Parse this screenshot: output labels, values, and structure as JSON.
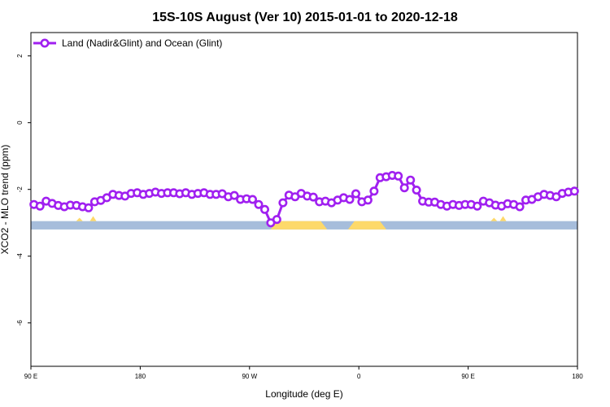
{
  "chart_data": {
    "type": "line",
    "title": "15S-10S August (Ver 10)   2015-01-01 to 2020-12-18",
    "xlabel": "Longitude (deg E)",
    "ylabel": "XCO2 - MLO trend (ppm)",
    "xlim": [
      90,
      450
    ],
    "ylim": [
      -7.3,
      2.7
    ],
    "x_ticks": [
      {
        "value": 90,
        "label": "90 E"
      },
      {
        "value": 162,
        "label": "180"
      },
      {
        "value": 234,
        "label": "90 W"
      },
      {
        "value": 306,
        "label": "0"
      },
      {
        "value": 378,
        "label": "90 E"
      },
      {
        "value": 450,
        "label": "180"
      }
    ],
    "y_ticks": [
      {
        "value": 2,
        "label": "2"
      },
      {
        "value": 0,
        "label": "0"
      },
      {
        "value": -2,
        "label": "-2"
      },
      {
        "value": -4,
        "label": "-4"
      },
      {
        "value": -6,
        "label": "-6"
      }
    ],
    "legend": {
      "position": "top-left"
    },
    "series": [
      {
        "name": "Land (Nadir&Glint) and Ocean (Glint)",
        "color": "#a020f0",
        "x": [
          92,
          96,
          100,
          104,
          108,
          112,
          116,
          120,
          124,
          128,
          132,
          136,
          140,
          144,
          148,
          152,
          156,
          160,
          164,
          168,
          172,
          176,
          180,
          184,
          188,
          192,
          196,
          200,
          204,
          208,
          212,
          216,
          220,
          224,
          228,
          232,
          236,
          240,
          244,
          248,
          252,
          256,
          260,
          264,
          268,
          272,
          276,
          280,
          284,
          288,
          292,
          296,
          300,
          304,
          308,
          312,
          316,
          320,
          324,
          328,
          332,
          336,
          340,
          344,
          348,
          352,
          356,
          360,
          364,
          368,
          372,
          376,
          380,
          384,
          388,
          392,
          396,
          400,
          404,
          408,
          412,
          416,
          420,
          424,
          428,
          432,
          436,
          440,
          444,
          448
        ],
        "y": [
          -2.45,
          -2.5,
          -2.35,
          -2.42,
          -2.48,
          -2.52,
          -2.47,
          -2.48,
          -2.52,
          -2.55,
          -2.37,
          -2.33,
          -2.25,
          -2.15,
          -2.18,
          -2.2,
          -2.12,
          -2.1,
          -2.15,
          -2.12,
          -2.08,
          -2.12,
          -2.1,
          -2.1,
          -2.13,
          -2.1,
          -2.15,
          -2.12,
          -2.1,
          -2.15,
          -2.15,
          -2.13,
          -2.22,
          -2.18,
          -2.3,
          -2.28,
          -2.3,
          -2.45,
          -2.6,
          -3.0,
          -2.9,
          -2.4,
          -2.17,
          -2.22,
          -2.12,
          -2.2,
          -2.23,
          -2.37,
          -2.35,
          -2.4,
          -2.32,
          -2.25,
          -2.3,
          -2.13,
          -2.37,
          -2.32,
          -2.05,
          -1.65,
          -1.62,
          -1.58,
          -1.6,
          -1.95,
          -1.72,
          -2.02,
          -2.35,
          -2.38,
          -2.38,
          -2.45,
          -2.5,
          -2.45,
          -2.48,
          -2.45,
          -2.45,
          -2.5,
          -2.35,
          -2.4,
          -2.47,
          -2.5,
          -2.43,
          -2.45,
          -2.52,
          -2.32,
          -2.3,
          -2.22,
          -2.15,
          -2.18,
          -2.22,
          -2.12,
          -2.08,
          -2.05
        ]
      }
    ],
    "land_ocean_strip": {
      "y_range": [
        -2.95,
        -3.2
      ],
      "ocean_color": "#a6bddb",
      "land_color": "#fdd96a",
      "land_segments": [
        [
          250,
          283
        ],
        [
          301,
          322
        ]
      ],
      "land_spikes": [
        [
          122,
          -2.85
        ],
        [
          131,
          -2.8
        ],
        [
          395,
          -2.85
        ],
        [
          401,
          -2.8
        ]
      ]
    }
  }
}
